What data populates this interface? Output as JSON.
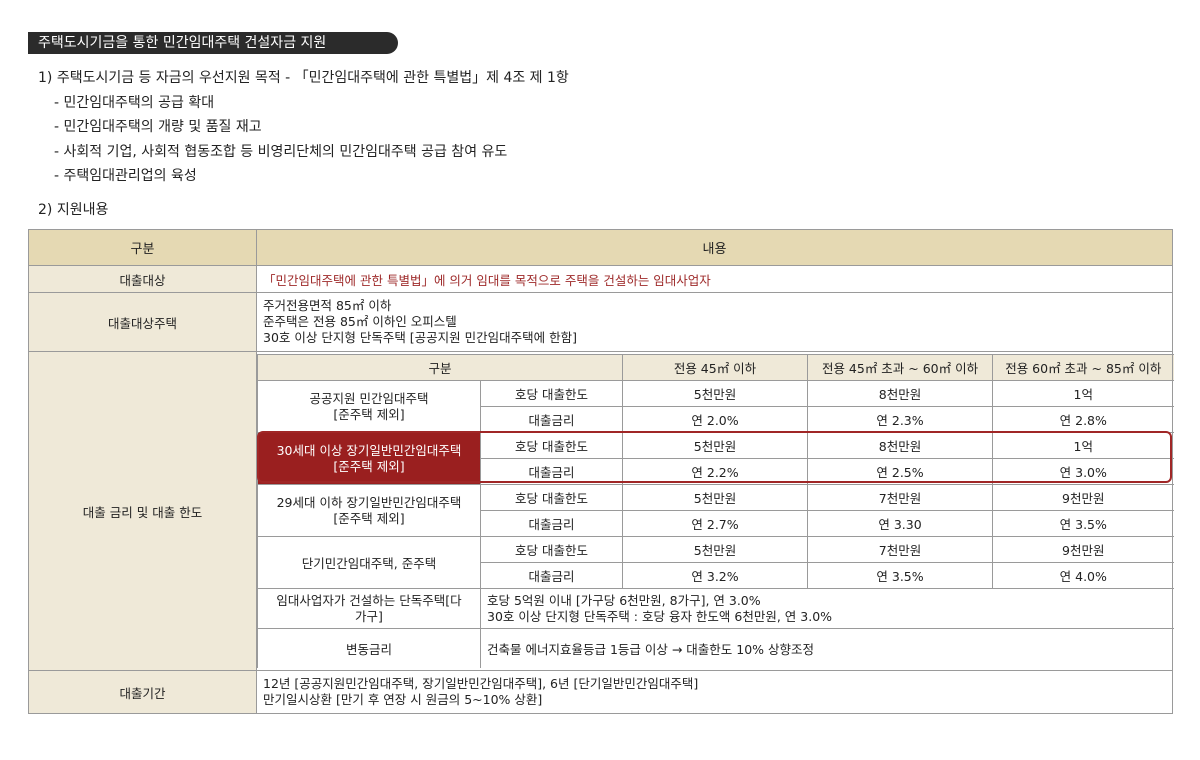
{
  "title": "주택도시기금을 통한 민간임대주택 건설자금 지원",
  "section1": {
    "heading": "1) 주택도시기금 등 자금의 우선지원 목적 - 「민간임대주택에 관한 특별법」제 4조 제 1항",
    "items": [
      "- 민간임대주택의 공급 확대",
      "- 민간임대주택의 개량 및 품질 재고",
      "- 사회적 기업, 사회적 협동조합 등 비영리단체의 민간임대주택 공급 참여 유도",
      "- 주택임대관리업의 육성"
    ]
  },
  "section2": {
    "heading": "2) 지원내용"
  },
  "table": {
    "header_col1": "구분",
    "header_col2": "내용",
    "target_label": "대출대상",
    "target_value": "「민간임대주택에 관한 특별법」에 의거 임대를 목적으로 주택을 건설하는 임대사업자",
    "house_label": "대출대상주택",
    "house_lines": [
      "주거전용면적 85㎡ 이하",
      "준주택은 전용 85㎡ 이하인 오피스텔",
      "30호 이상 단지형 단독주택 [공공지원 민간임대주택에 한함]"
    ],
    "rate_label": "대출 금리 및 대출 한도",
    "inner_header": [
      "구분",
      "전용 45㎡ 이하",
      "전용 45㎡ 초과 ~ 60㎡ 이하",
      "전용 60㎡ 초과 ~ 85㎡ 이하"
    ],
    "groups": [
      {
        "name": [
          "공공지원 민간임대주택",
          "[준주택 제외]"
        ],
        "rows": [
          {
            "label": "호당 대출한도",
            "values": [
              "5천만원",
              "8천만원",
              "1억"
            ]
          },
          {
            "label": "대출금리",
            "values": [
              "연 2.0%",
              "연 2.3%",
              "연 2.8%"
            ]
          }
        ]
      },
      {
        "name": [
          "30세대 이상 장기일반민간임대주택",
          "[준주택 제외]"
        ],
        "rows": [
          {
            "label": "호당 대출한도",
            "values": [
              "5천만원",
              "8천만원",
              "1억"
            ]
          },
          {
            "label": "대출금리",
            "values": [
              "연 2.2%",
              "연 2.5%",
              "연 3.0%"
            ]
          }
        ]
      },
      {
        "name": [
          "29세대 이하 장기일반민간임대주택",
          "[준주택 제외]"
        ],
        "rows": [
          {
            "label": "호당 대출한도",
            "values": [
              "5천만원",
              "7천만원",
              "9천만원"
            ]
          },
          {
            "label": "대출금리",
            "values": [
              "연 2.7%",
              "연 3.30",
              "연 3.5%"
            ]
          }
        ]
      },
      {
        "name": [
          "단기민간임대주택, 준주택",
          ""
        ],
        "rows": [
          {
            "label": "호당 대출한도",
            "values": [
              "5천만원",
              "7천만원",
              "9천만원"
            ]
          },
          {
            "label": "대출금리",
            "values": [
              "연 3.2%",
              "연 3.5%",
              "연 4.0%"
            ]
          }
        ]
      }
    ],
    "detached_label": [
      "임대사업자가 건설하는 단독주택[다",
      "가구]"
    ],
    "detached_lines": [
      "호당 5억원 이내 [가구당 6천만원, 8가구], 연 3.0%",
      "30호 이상 단지형 단독주택 : 호당 융자 한도액 6천만원, 연 3.0%"
    ],
    "floating_label": "변동금리",
    "floating_value": "건축물 에너지효율등급 1등급 이상 → 대출한도 10% 상향조정",
    "period_label": "대출기간",
    "period_lines": [
      "12년 [공공지원민간임대주택, 장기일반민간임대주택], 6년 [단기일반민간임대주택]",
      "만기일시상환 [만기 후 연장 시 원금의 5~10% 상환]"
    ]
  },
  "colors": {
    "header_bg": "#e5d9b3",
    "label_bg": "#efe9d8",
    "highlight": "#9a1f1f",
    "title_bg": "#2b2b2b"
  }
}
